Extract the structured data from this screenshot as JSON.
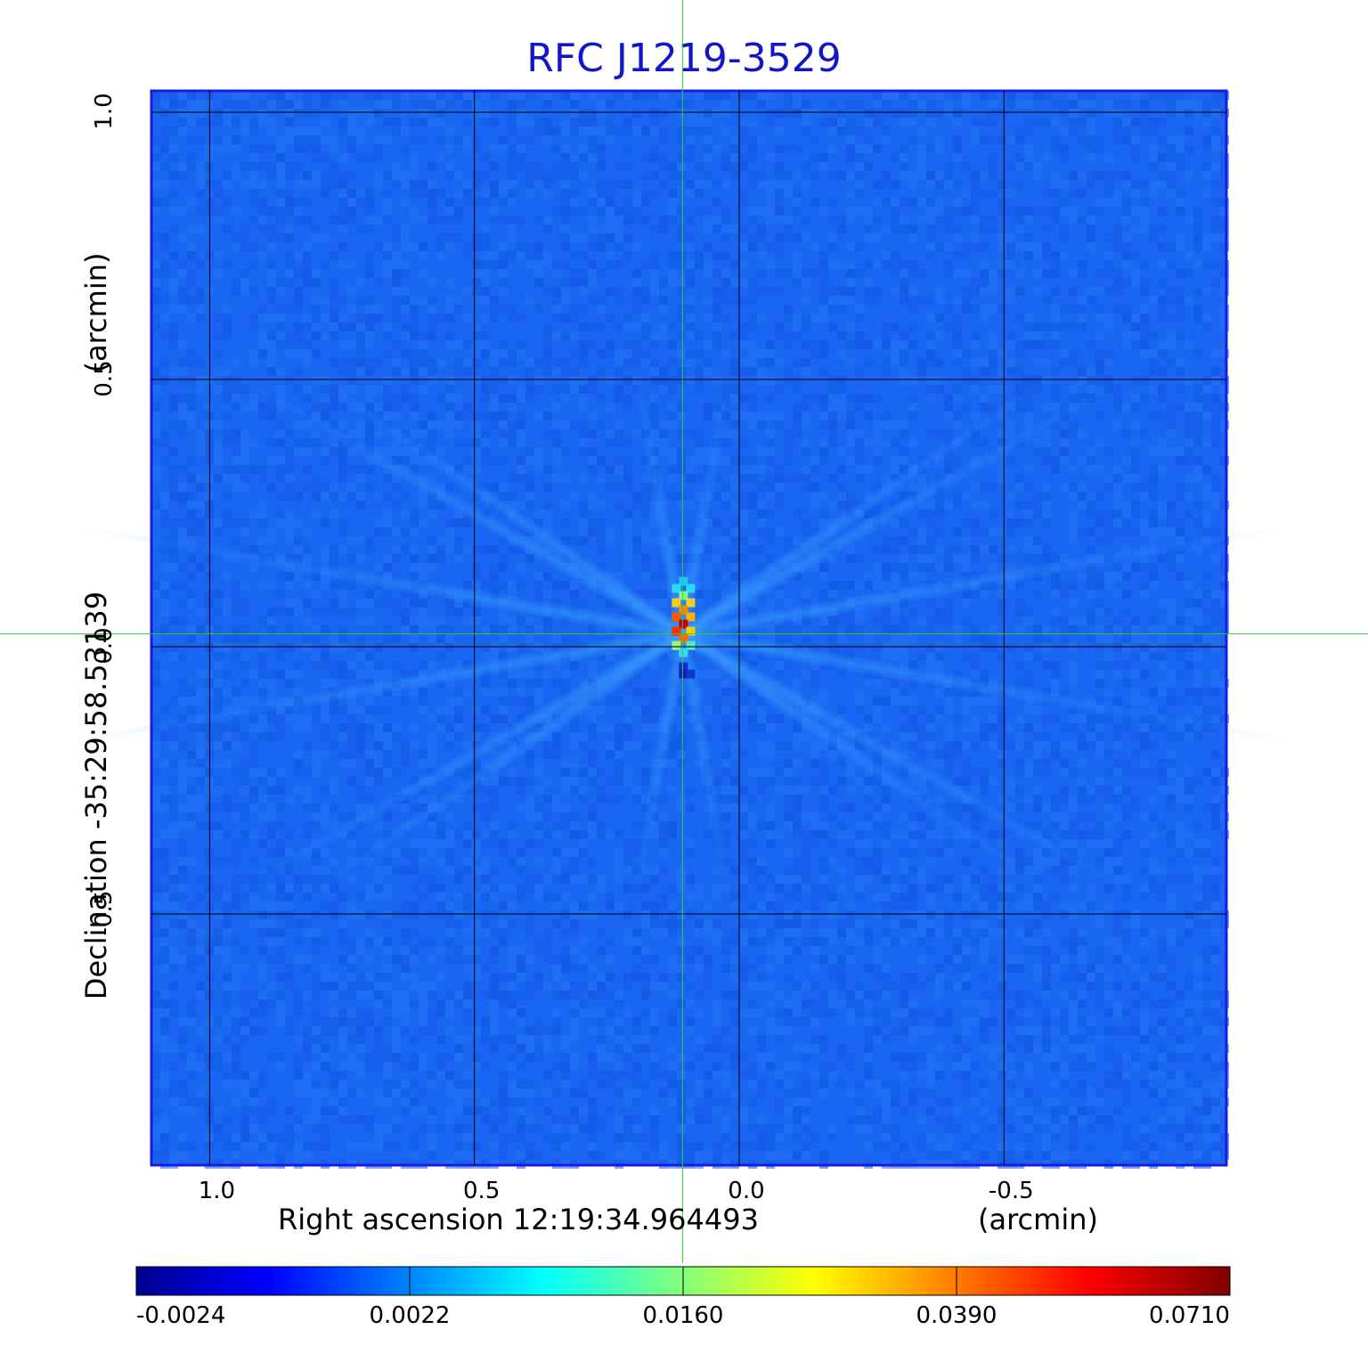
{
  "chart_data": {
    "type": "heatmap",
    "title": "RFC J1219-3529",
    "xlabel": "Right ascension  12:19:34.964493",
    "xunit": "(arcmin)",
    "ylabel": "Declination  -35:29:58.53139",
    "yunit": "(arcmin)",
    "x_ticks": [
      "1.0",
      "0.5",
      "0.0",
      "-0.5"
    ],
    "y_ticks": [
      "1.0",
      "0.5",
      "0.0",
      "-0.5"
    ],
    "xlim": [
      1.11,
      -0.92
    ],
    "ylim": [
      -0.97,
      1.04
    ],
    "grid": true,
    "crosshair": {
      "x": 0.107,
      "y": 0.024,
      "color": "#33cc33"
    },
    "source_peak": {
      "x": 0.107,
      "y": 0.024,
      "value": 0.071
    },
    "colormap": "jet",
    "colorbar_ticks": [
      "-0.0024",
      "0.0022",
      "0.0160",
      "0.0390",
      "0.0710"
    ],
    "frame_color": "#1a1ae6"
  }
}
